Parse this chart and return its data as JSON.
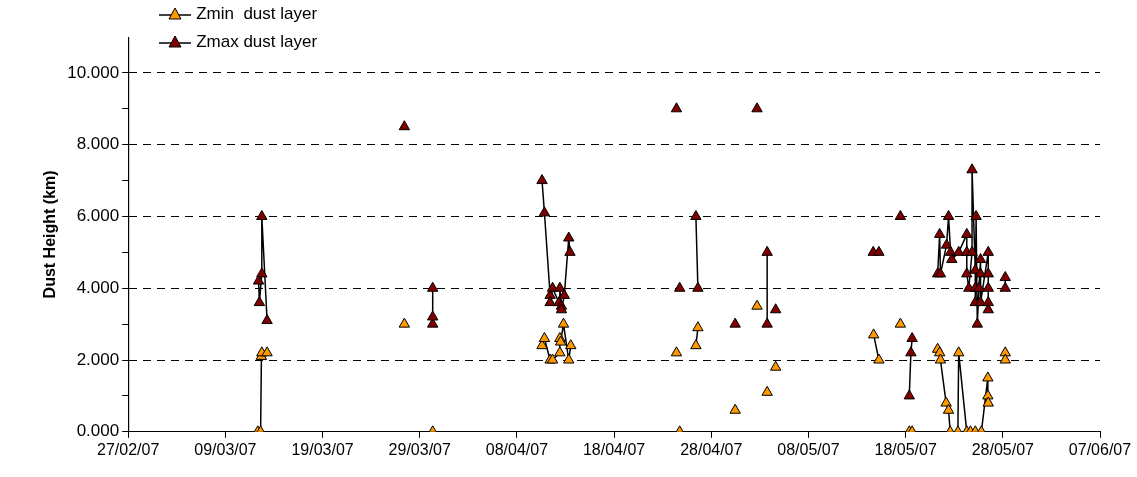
{
  "chart_data": {
    "type": "line",
    "ylabel": "Dust Height (km)",
    "legend": "top left",
    "grid": "y",
    "marker": "triangle",
    "line_style": "solid",
    "xlim": [
      "--02-27",
      "--06-07"
    ],
    "xticks": [
      {
        "value": "--02-27",
        "label": "27/02/07"
      },
      {
        "value": "--03-09",
        "label": "09/03/07"
      },
      {
        "value": "--03-19",
        "label": "19/03/07"
      },
      {
        "value": "--03-29",
        "label": "29/03/07"
      },
      {
        "value": "--04-08",
        "label": "08/04/07"
      },
      {
        "value": "--04-18",
        "label": "18/04/07"
      },
      {
        "value": "--04-28",
        "label": "28/04/07"
      },
      {
        "value": "--05-08",
        "label": "08/05/07"
      },
      {
        "value": "--05-18",
        "label": "18/05/07"
      },
      {
        "value": "--05-28",
        "label": "28/05/07"
      },
      {
        "value": "--06-07",
        "label": "07/06/07"
      }
    ],
    "ylim": [
      0,
      11
    ],
    "yticks": [
      {
        "value": 0,
        "label": "0.000"
      },
      {
        "value": 1,
        "label": null
      },
      {
        "value": 2,
        "label": "2.000"
      },
      {
        "value": 3,
        "label": null
      },
      {
        "value": 4,
        "label": "4.000"
      },
      {
        "value": 5,
        "label": null
      },
      {
        "value": 6,
        "label": "6.000"
      },
      {
        "value": 7,
        "label": null
      },
      {
        "value": 8,
        "label": "8.000"
      },
      {
        "value": 9,
        "label": null
      },
      {
        "value": 10,
        "label": "10.000"
      }
    ],
    "series": [
      {
        "name": "Zmin  dust layer",
        "color": "#ff9900",
        "x": [
          "--03-12T08:00",
          "--03-12T15:00",
          "--03-12T17:00",
          "--03-12T18:00",
          "--03-13T07:00",
          null,
          "--03-27T10:00",
          null,
          "--03-30T08:00",
          null,
          "--04-10T14:00",
          "--04-10T20:00",
          "--04-11T10:00",
          "--04-11T16:00",
          "--04-12T10:00",
          "--04-12T10:00",
          "--04-12T12:00",
          "--04-12T19:00",
          "--04-13T08:00",
          "--04-13T13:00",
          null,
          "--04-24T10:00",
          null,
          "--04-24T18:00",
          null,
          "--04-26T10:00",
          "--04-26T15:00",
          null,
          "--04-30T11:00",
          null,
          "--05-02T17:00",
          null,
          "--05-03T18:00",
          null,
          "--05-04T15:00",
          null,
          "--05-14T17:00",
          "--05-15T06:00",
          null,
          "--05-17T11:00",
          null,
          "--05-18T09:00",
          null,
          "--05-18T16:00",
          null,
          "--05-21T07:00",
          "--05-21T12:00",
          "--05-21T14:00",
          "--05-22T04:00",
          "--05-22T10:00",
          "--05-22T14:00",
          "--05-23T09:00",
          "--05-23T11:00",
          "--05-24T07:00",
          "--05-24T16:00",
          "--05-25T04:00",
          "--05-25T19:00",
          "--05-26T11:00",
          "--05-26T11:00",
          "--05-26T12:00",
          null,
          "--05-28T06:00",
          "--05-28T06:00"
        ],
        "values": [
          0,
          0,
          2.1,
          2.2,
          2.2,
          null,
          3.0,
          null,
          0,
          null,
          2.4,
          2.6,
          2.0,
          2.0,
          2.2,
          2.6,
          2.5,
          3.0,
          2.0,
          2.4,
          null,
          2.2,
          null,
          0,
          null,
          2.4,
          2.9,
          null,
          0.6,
          null,
          3.5,
          null,
          1.1,
          null,
          1.8,
          null,
          2.7,
          2.0,
          null,
          3.0,
          null,
          0,
          null,
          0,
          null,
          2.3,
          2.2,
          2.0,
          0.8,
          0.6,
          0,
          0,
          2.2,
          0,
          0,
          0,
          0,
          1.5,
          1.0,
          0.8,
          null,
          2.2,
          2.0
        ]
      },
      {
        "name": "Zmax dust layer",
        "color": "#800000",
        "x": [
          "--03-12T10:00",
          "--03-12T12:00",
          "--03-12T18:00",
          "--03-12T18:00",
          "--03-13T07:00",
          null,
          "--03-27T10:00",
          null,
          "--03-30T08:00",
          "--03-30T08:00",
          "--03-30T08:00",
          null,
          "--04-10T14:00",
          "--04-10T20:00",
          "--04-11T10:00",
          "--04-11T10:00",
          "--04-11T16:00",
          "--04-12T08:00",
          "--04-12T10:00",
          "--04-12T14:00",
          "--04-12T14:00",
          "--04-12T21:00",
          "--04-13T08:00",
          "--04-13T11:00",
          null,
          "--04-24T10:00",
          null,
          "--04-24T18:00",
          null,
          "--04-26T10:00",
          "--04-26T15:00",
          null,
          "--04-30T11:00",
          null,
          "--05-02T17:00",
          null,
          "--05-03T18:00",
          "--05-03T18:00",
          null,
          "--05-04T15:00",
          null,
          "--05-14T16:00",
          "--05-15T06:00",
          null,
          "--05-17T11:00",
          null,
          "--05-18T09:00",
          "--05-18T13:00",
          "--05-18T16:00",
          null,
          "--05-21T07:00",
          "--05-21T12:00",
          "--05-21T14:00",
          "--05-22T05:00",
          "--05-22T10:00",
          "--05-22T15:00",
          "--05-22T18:00",
          "--05-23T11:00",
          "--05-24T07:00",
          "--05-24T07:00",
          "--05-24T07:00",
          "--05-24T12:00",
          "--05-24T20:00",
          "--05-24T20:00",
          "--05-25T04:00",
          "--05-25T04:00",
          "--05-25T04:00",
          "--05-25T06:00",
          "--05-25T09:00",
          "--05-25T13:00",
          "--05-25T17:00",
          "--05-25T17:00",
          "--05-25T17:00",
          "--05-26T12:00",
          "--05-26T12:00",
          "--05-26T12:00",
          "--05-26T12:00",
          "--05-26T12:00",
          null,
          "--05-28T06:00",
          "--05-28T06:00"
        ],
        "values": [
          4.2,
          3.6,
          4.4,
          6.0,
          3.1,
          null,
          8.5,
          null,
          3.0,
          3.2,
          4.0,
          null,
          7.0,
          6.1,
          3.8,
          3.6,
          4.0,
          3.6,
          4.0,
          3.5,
          3.4,
          3.8,
          5.4,
          5.0,
          null,
          9.0,
          null,
          4.0,
          null,
          6.0,
          4.0,
          null,
          3.0,
          null,
          9.0,
          null,
          5.0,
          3.0,
          null,
          3.4,
          null,
          5.0,
          5.0,
          null,
          6.0,
          null,
          1.0,
          2.2,
          2.6,
          null,
          4.4,
          5.5,
          4.4,
          5.2,
          6.0,
          5.0,
          4.8,
          5.0,
          5.5,
          5.0,
          4.4,
          4.0,
          5.0,
          7.3,
          4.5,
          4.0,
          3.6,
          6.0,
          3.0,
          4.0,
          4.8,
          4.4,
          3.6,
          5.0,
          4.4,
          4.0,
          3.6,
          3.4,
          null,
          4.3,
          4.0
        ]
      }
    ]
  }
}
